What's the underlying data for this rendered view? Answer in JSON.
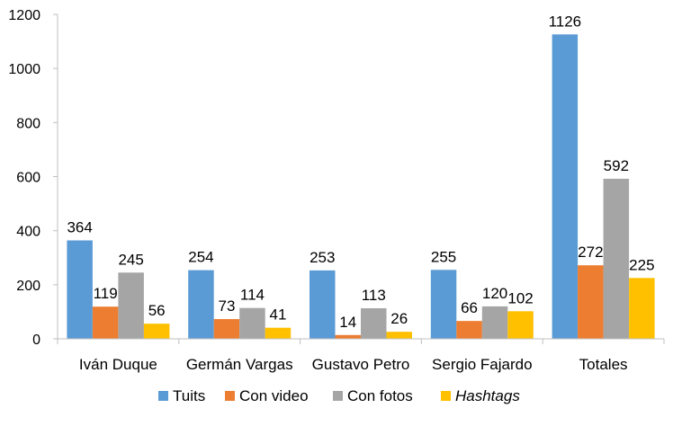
{
  "chart_data": {
    "type": "bar",
    "categories": [
      "Iván Duque",
      "Germán Vargas",
      "Gustavo Petro",
      "Sergio Fajardo",
      "Totales"
    ],
    "series": [
      {
        "name": "Tuits",
        "values": [
          364,
          254,
          253,
          255,
          1126
        ],
        "color": "#5b9bd5"
      },
      {
        "name": "Con video",
        "values": [
          119,
          73,
          14,
          66,
          272
        ],
        "color": "#ed7d31"
      },
      {
        "name": "Con fotos",
        "values": [
          245,
          114,
          113,
          120,
          592
        ],
        "color": "#a5a5a5"
      },
      {
        "name": "Hashtags",
        "values": [
          56,
          41,
          26,
          102,
          225
        ],
        "color": "#ffc000",
        "italic": true
      }
    ],
    "yticks": [
      0,
      200,
      400,
      600,
      800,
      1000,
      1200
    ],
    "ylim": [
      0,
      1200
    ],
    "title": "",
    "xlabel": "",
    "ylabel": "",
    "grid": false,
    "legend": "bottom"
  }
}
